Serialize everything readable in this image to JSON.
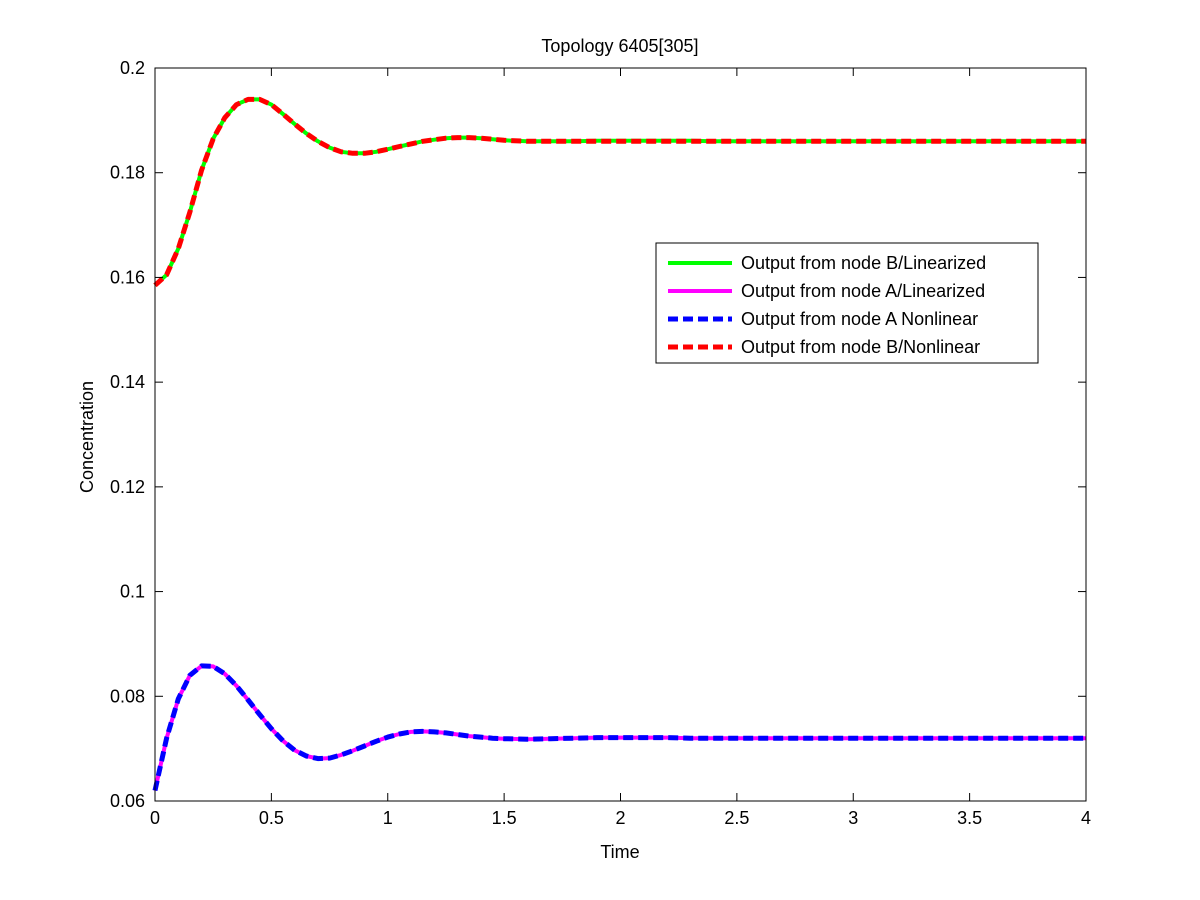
{
  "chart_data": {
    "type": "line",
    "title": "Topology 6405[305]",
    "xlabel": "Time",
    "ylabel": "Concentration",
    "xlim": [
      0,
      4
    ],
    "ylim": [
      0.06,
      0.2
    ],
    "xticks": [
      0,
      0.5,
      1,
      1.5,
      2,
      2.5,
      3,
      3.5,
      4
    ],
    "xtick_labels": [
      "0",
      "0.5",
      "1",
      "1.5",
      "2",
      "2.5",
      "3",
      "3.5",
      "4"
    ],
    "yticks": [
      0.06,
      0.08,
      0.1,
      0.12,
      0.14,
      0.16,
      0.18,
      0.2
    ],
    "ytick_labels": [
      "0.06",
      "0.08",
      "0.1",
      "0.12",
      "0.14",
      "0.16",
      "0.18",
      "0.2"
    ],
    "grid": false,
    "legend_position": "right, upper-middle",
    "x": [
      0,
      0.05,
      0.1,
      0.15,
      0.2,
      0.25,
      0.3,
      0.35,
      0.4,
      0.45,
      0.5,
      0.55,
      0.6,
      0.65,
      0.7,
      0.75,
      0.8,
      0.85,
      0.9,
      0.95,
      1.0,
      1.05,
      1.1,
      1.15,
      1.2,
      1.25,
      1.3,
      1.35,
      1.4,
      1.45,
      1.5,
      1.6,
      1.7,
      1.8,
      1.9,
      2.0,
      2.1,
      2.2,
      2.3,
      2.4,
      2.5,
      2.75,
      3.0,
      3.25,
      3.5,
      3.75,
      4.0
    ],
    "series": [
      {
        "name": "Output from node B/Linearized",
        "color": "#00ff00",
        "style": "solid",
        "values": [
          0.1585,
          0.1605,
          0.1655,
          0.1725,
          0.1805,
          0.1865,
          0.1905,
          0.193,
          0.194,
          0.194,
          0.193,
          0.1912,
          0.1893,
          0.1875,
          0.186,
          0.1848,
          0.184,
          0.1837,
          0.1837,
          0.184,
          0.1845,
          0.185,
          0.1855,
          0.186,
          0.1863,
          0.1866,
          0.1867,
          0.1867,
          0.1866,
          0.1864,
          0.1862,
          0.186,
          0.186,
          0.186,
          0.1861,
          0.1861,
          0.1861,
          0.1861,
          0.1861,
          0.186,
          0.186,
          0.186,
          0.186,
          0.186,
          0.186,
          0.186,
          0.186
        ]
      },
      {
        "name": "Output from node A/Linearized",
        "color": "#ff00ff",
        "style": "solid",
        "values": [
          0.062,
          0.072,
          0.0795,
          0.084,
          0.0858,
          0.0857,
          0.0843,
          0.082,
          0.0793,
          0.0765,
          0.0738,
          0.0715,
          0.0697,
          0.0686,
          0.0681,
          0.0682,
          0.0688,
          0.0696,
          0.0705,
          0.0714,
          0.0722,
          0.0728,
          0.0732,
          0.0733,
          0.0732,
          0.073,
          0.0727,
          0.0724,
          0.0722,
          0.072,
          0.0719,
          0.0718,
          0.0719,
          0.072,
          0.0721,
          0.0721,
          0.0721,
          0.0721,
          0.072,
          0.072,
          0.072,
          0.072,
          0.072,
          0.072,
          0.072,
          0.072,
          0.072
        ]
      },
      {
        "name": "Output from node A Nonlinear",
        "color": "#0000ff",
        "style": "dashed",
        "values": [
          0.062,
          0.072,
          0.0795,
          0.084,
          0.0858,
          0.0857,
          0.0843,
          0.082,
          0.0793,
          0.0765,
          0.0738,
          0.0715,
          0.0697,
          0.0686,
          0.0681,
          0.0682,
          0.0688,
          0.0696,
          0.0705,
          0.0714,
          0.0722,
          0.0728,
          0.0732,
          0.0733,
          0.0732,
          0.073,
          0.0727,
          0.0724,
          0.0722,
          0.072,
          0.0719,
          0.0718,
          0.0719,
          0.072,
          0.0721,
          0.0721,
          0.0721,
          0.0721,
          0.072,
          0.072,
          0.072,
          0.072,
          0.072,
          0.072,
          0.072,
          0.072,
          0.072
        ]
      },
      {
        "name": "Output from node B/Nonlinear",
        "color": "#ff0000",
        "style": "dashed",
        "values": [
          0.1585,
          0.1605,
          0.1655,
          0.1725,
          0.1805,
          0.1865,
          0.1905,
          0.193,
          0.194,
          0.194,
          0.193,
          0.1912,
          0.1893,
          0.1875,
          0.186,
          0.1848,
          0.184,
          0.1837,
          0.1837,
          0.184,
          0.1845,
          0.185,
          0.1855,
          0.186,
          0.1863,
          0.1866,
          0.1867,
          0.1867,
          0.1866,
          0.1864,
          0.1862,
          0.186,
          0.186,
          0.186,
          0.186,
          0.186,
          0.186,
          0.186,
          0.186,
          0.186,
          0.186,
          0.186,
          0.186,
          0.186,
          0.186,
          0.186,
          0.186
        ]
      }
    ]
  }
}
